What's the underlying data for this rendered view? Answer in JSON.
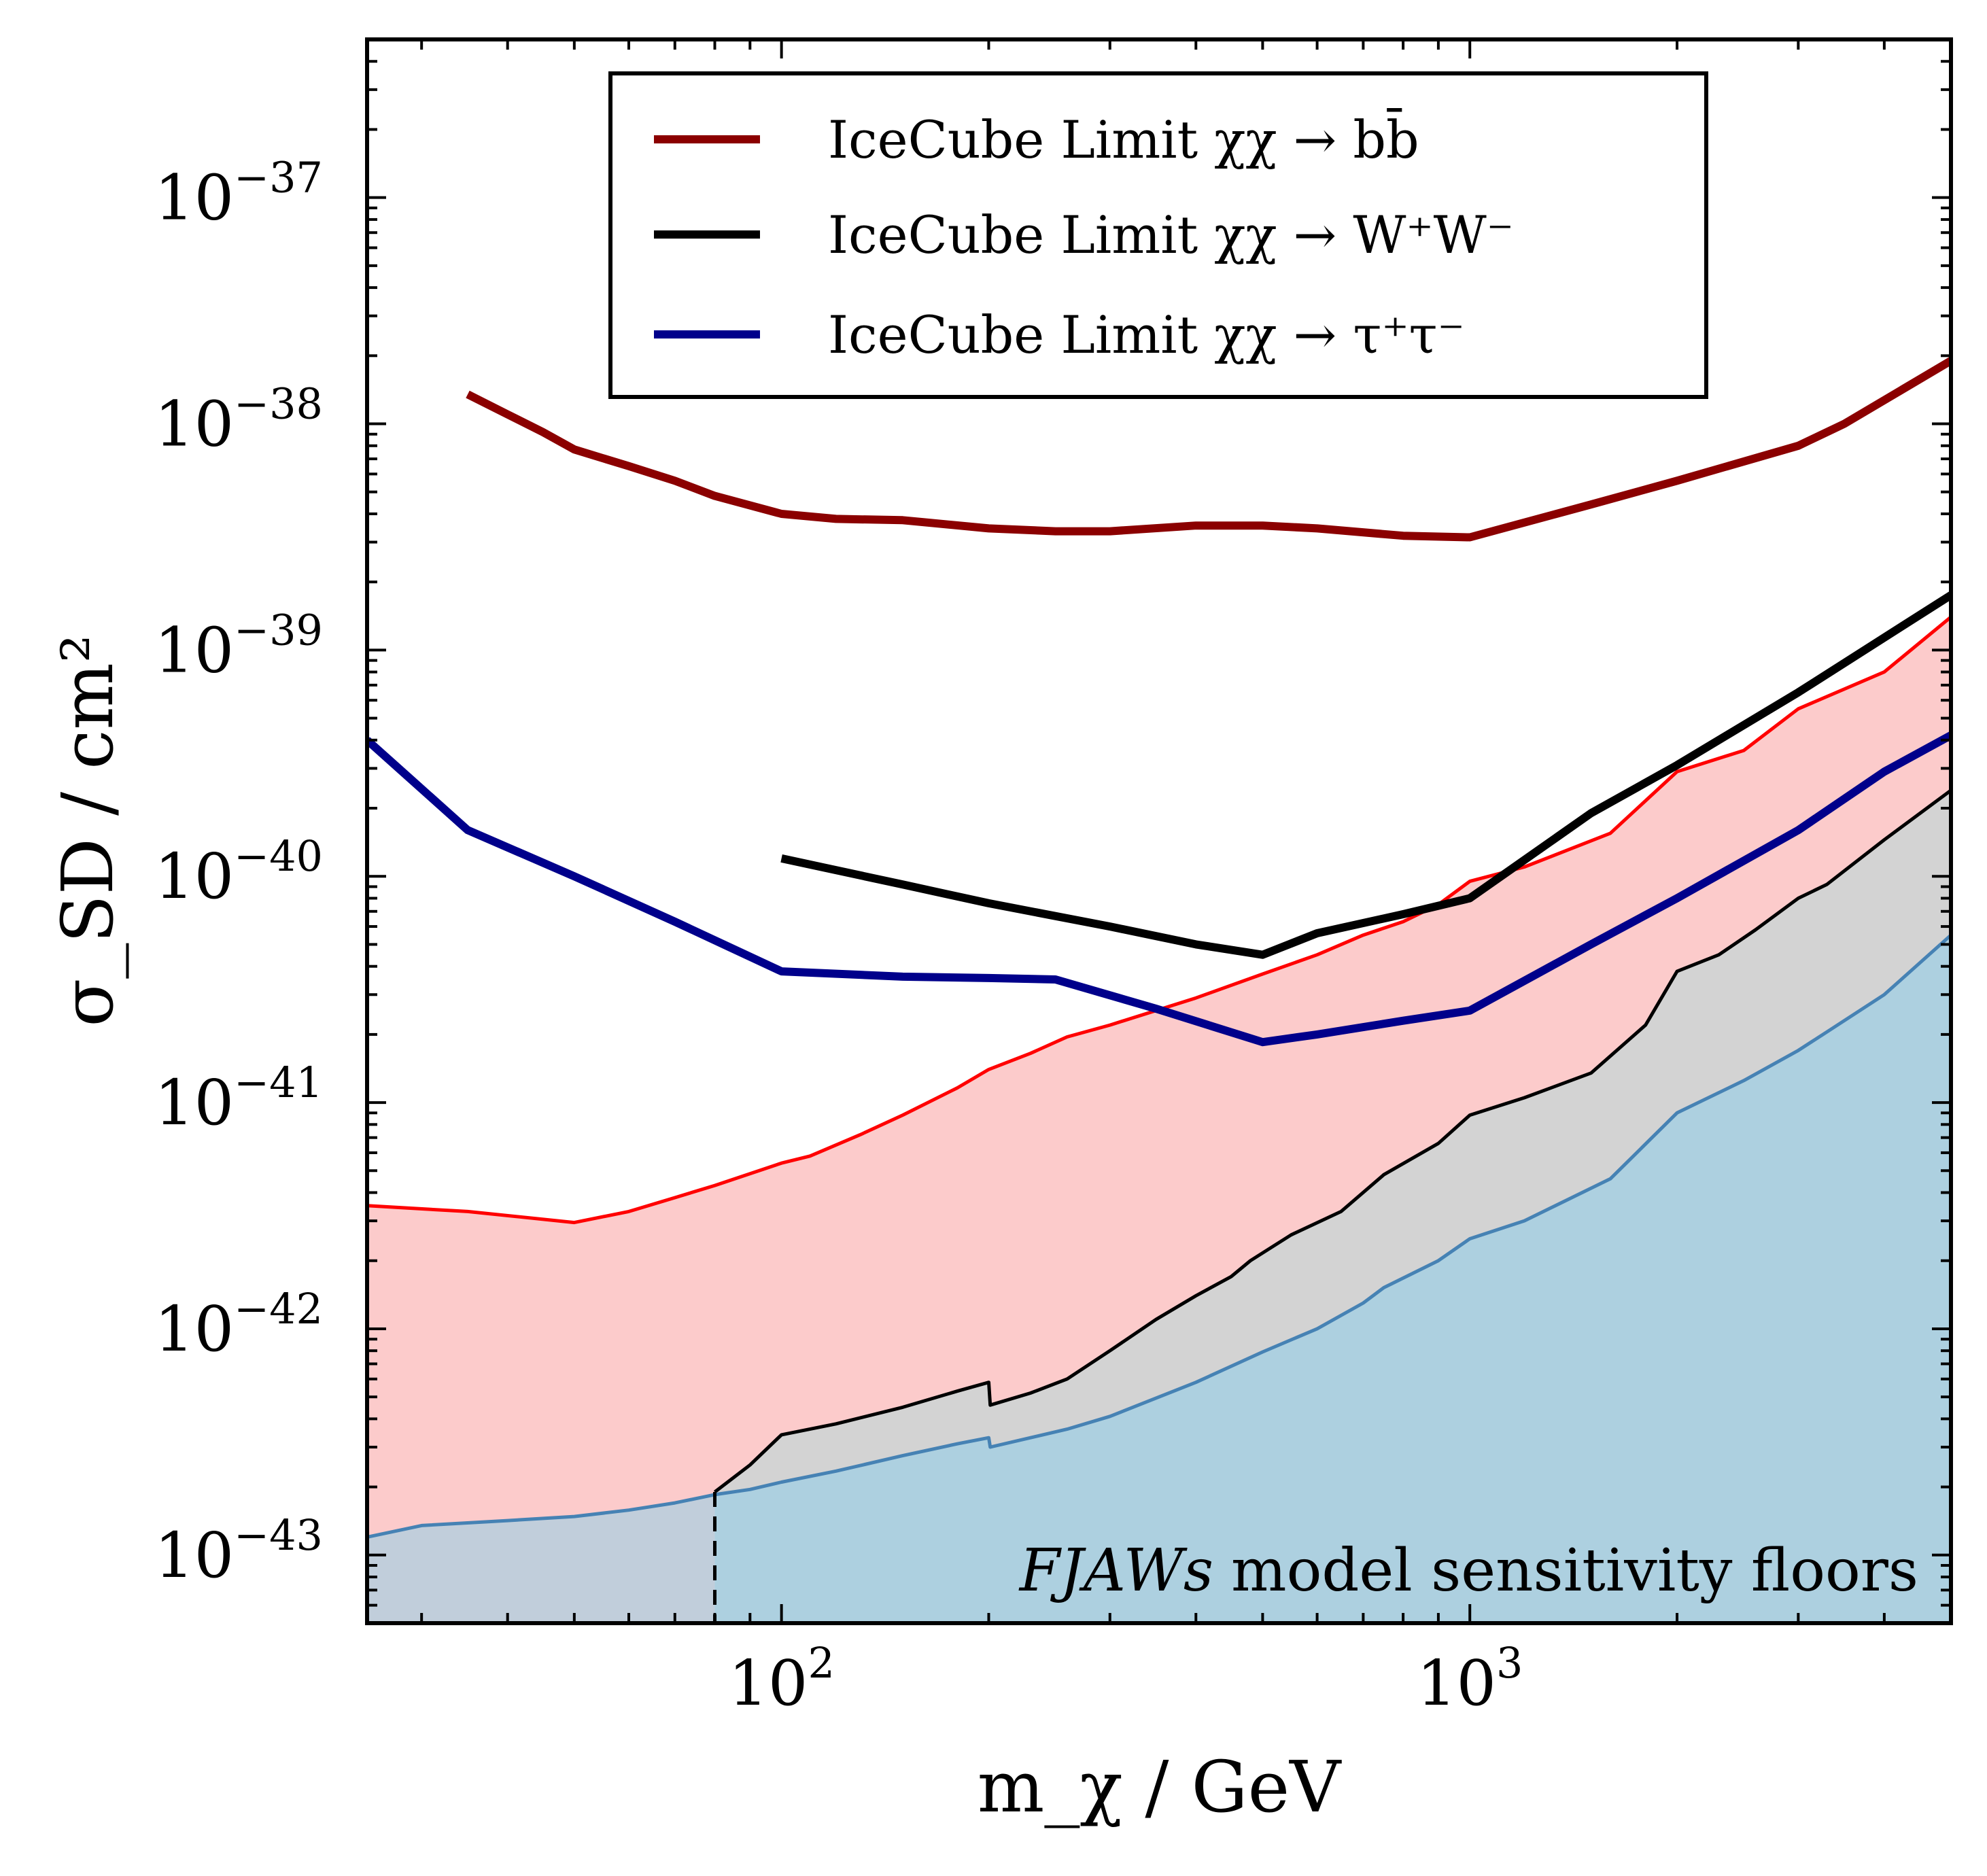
{
  "chart_data": {
    "type": "line",
    "title": "",
    "xlabel": "m_χ / GeV",
    "ylabel": "σ_SD / cm²",
    "xscale": "log",
    "yscale": "log",
    "xlim": [
      25,
      5000
    ],
    "ylim": [
      5e-44,
      5e-37
    ],
    "grid": false,
    "legend_position": "top-center",
    "x_ticks": [
      {
        "value": 100,
        "base": "10",
        "exp": "2"
      },
      {
        "value": 1000,
        "base": "10",
        "exp": "3"
      }
    ],
    "y_ticks": [
      {
        "value": 1e-43,
        "base": "10",
        "exp": "−43"
      },
      {
        "value": 1e-42,
        "base": "10",
        "exp": "−42"
      },
      {
        "value": 1e-41,
        "base": "10",
        "exp": "−41"
      },
      {
        "value": 1e-40,
        "base": "10",
        "exp": "−40"
      },
      {
        "value": 1e-39,
        "base": "10",
        "exp": "−39"
      },
      {
        "value": 1e-38,
        "base": "10",
        "exp": "−38"
      },
      {
        "value": 1e-37,
        "base": "10",
        "exp": "−37"
      }
    ],
    "series": [
      {
        "name": "IceCube Limit χχ → b b̄",
        "legend_text": "IceCube Limit χχ → bb̄",
        "color": "#8b0000",
        "x": [
          35,
          40,
          45,
          50,
          60,
          70,
          80,
          100,
          120,
          150,
          200,
          250,
          300,
          400,
          500,
          600,
          800,
          1000,
          1500,
          2000,
          3000,
          3500,
          5000
        ],
        "y": [
          1.35e-38,
          1.1e-38,
          9.2e-39,
          7.7e-39,
          6.5e-39,
          5.6e-39,
          4.8e-39,
          4e-39,
          3.8e-39,
          3.75e-39,
          3.45e-39,
          3.35e-39,
          3.35e-39,
          3.55e-39,
          3.55e-39,
          3.45e-39,
          3.2e-39,
          3.15e-39,
          4.4e-39,
          5.6e-39,
          8e-39,
          1e-38,
          1.9e-38
        ]
      },
      {
        "name": "IceCube Limit χχ → W+W−",
        "legend_text": "IceCube Limit χχ → W⁺W⁻",
        "color": "#000000",
        "x": [
          100,
          150,
          200,
          300,
          400,
          500,
          600,
          800,
          1000,
          1500,
          2000,
          3000,
          5000
        ],
        "y": [
          1.2e-40,
          9.2e-41,
          7.6e-41,
          6e-41,
          5e-41,
          4.5e-41,
          5.6e-41,
          6.8e-41,
          8e-41,
          1.9e-40,
          3.1e-40,
          6.5e-40,
          1.75e-39
        ]
      },
      {
        "name": "IceCube Limit χχ → τ+τ−",
        "legend_text": "IceCube Limit χχ → τ⁺τ⁻",
        "color": "#00008b",
        "x": [
          25,
          35,
          50,
          70,
          100,
          150,
          200,
          250,
          350,
          500,
          600,
          800,
          1000,
          1500,
          2000,
          3000,
          4000,
          5000
        ],
        "y": [
          4e-40,
          1.6e-40,
          1e-40,
          6.3e-41,
          3.8e-41,
          3.6e-41,
          3.55e-41,
          3.5e-41,
          2.6e-41,
          1.85e-41,
          2e-41,
          2.3e-41,
          2.55e-41,
          5e-41,
          8e-41,
          1.6e-40,
          2.9e-40,
          4.2e-40
        ]
      }
    ],
    "bands": [
      {
        "name": "pink sensitivity floor",
        "fill": "#fccbcb",
        "edge": "#ff0000",
        "x": [
          25,
          35,
          50,
          60,
          70,
          80,
          100,
          110,
          130,
          150,
          180,
          200,
          230,
          260,
          300,
          400,
          500,
          600,
          700,
          800,
          900,
          1000,
          1200,
          1600,
          2000,
          2500,
          3000,
          4000,
          5000
        ],
        "y": [
          3.5e-42,
          3.3e-42,
          2.95e-42,
          3.3e-42,
          3.8e-42,
          4.3e-42,
          5.4e-42,
          5.8e-42,
          7.2e-42,
          8.8e-42,
          1.16e-41,
          1.4e-41,
          1.65e-41,
          1.95e-41,
          2.2e-41,
          2.9e-41,
          3.7e-41,
          4.5e-41,
          5.5e-41,
          6.3e-41,
          7.5e-41,
          9.5e-41,
          1.1e-40,
          1.55e-40,
          2.9e-40,
          3.6e-40,
          5.5e-40,
          8e-40,
          1.4e-39
        ]
      },
      {
        "name": "grey sensitivity floor",
        "fill": "#d3d3d3",
        "edge": "#000000",
        "x": [
          80,
          90,
          100,
          120,
          150,
          180,
          200,
          201,
          230,
          260,
          300,
          350,
          400,
          450,
          480,
          550,
          650,
          750,
          900,
          1000,
          1200,
          1500,
          1800,
          2000,
          2300,
          2600,
          3000,
          3300,
          4000,
          5000
        ],
        "y": [
          1.9e-43,
          2.5e-43,
          3.4e-43,
          3.8e-43,
          4.5e-43,
          5.3e-43,
          5.8e-43,
          4.6e-43,
          5.2e-43,
          6e-43,
          8e-43,
          1.1e-42,
          1.4e-42,
          1.7e-42,
          2e-42,
          2.6e-42,
          3.3e-42,
          4.8e-42,
          6.6e-42,
          8.8e-42,
          1.05e-41,
          1.35e-41,
          2.2e-41,
          3.8e-41,
          4.5e-41,
          5.8e-41,
          8e-41,
          9.2e-41,
          1.45e-40,
          2.4e-40
        ]
      },
      {
        "name": "blue sensitivity floor",
        "fill": "#add0e0",
        "edge": "#4682b4",
        "x": [
          25,
          30,
          40,
          50,
          60,
          70,
          80,
          90,
          100,
          120,
          150,
          180,
          200,
          201,
          230,
          260,
          300,
          400,
          500,
          600,
          700,
          750,
          900,
          1000,
          1200,
          1600,
          2000,
          2500,
          3000,
          3300,
          4000,
          5000
        ],
        "y": [
          1.2e-43,
          1.35e-43,
          1.42e-43,
          1.48e-43,
          1.58e-43,
          1.7e-43,
          1.85e-43,
          1.95e-43,
          2.1e-43,
          2.35e-43,
          2.75e-43,
          3.1e-43,
          3.3e-43,
          3e-43,
          3.3e-43,
          3.6e-43,
          4.1e-43,
          5.8e-43,
          7.9e-43,
          1e-42,
          1.3e-42,
          1.52e-42,
          2e-42,
          2.5e-42,
          3e-42,
          4.6e-42,
          9e-42,
          1.25e-41,
          1.7e-41,
          2.05e-41,
          3e-41,
          5.5e-41
        ]
      }
    ],
    "excluded_region": {
      "name": "low-mass shaded region",
      "fill": "#c1cedb",
      "x_max": 80,
      "divider_style": "dashed"
    },
    "annotation": {
      "model": "FJAWs",
      "text": "model sensitivity floors",
      "position": "bottom-right"
    }
  }
}
